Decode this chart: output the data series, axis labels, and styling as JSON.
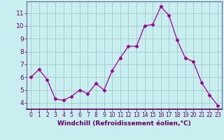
{
  "x": [
    0,
    1,
    2,
    3,
    4,
    5,
    6,
    7,
    8,
    9,
    10,
    11,
    12,
    13,
    14,
    15,
    16,
    17,
    18,
    19,
    20,
    21,
    22,
    23
  ],
  "y": [
    6.0,
    6.6,
    5.8,
    4.3,
    4.2,
    4.5,
    5.0,
    4.7,
    5.5,
    5.0,
    6.5,
    7.5,
    8.4,
    8.4,
    10.0,
    10.1,
    11.5,
    10.8,
    8.9,
    7.5,
    7.2,
    5.6,
    4.6,
    3.8
  ],
  "line_color": "#990099",
  "marker": "D",
  "markersize": 2.5,
  "bg_color": "#c8eef0",
  "grid_color": "#aacccc",
  "ylabel_ticks": [
    4,
    5,
    6,
    7,
    8,
    9,
    10,
    11
  ],
  "xlim": [
    -0.5,
    23.5
  ],
  "ylim": [
    3.5,
    11.9
  ],
  "xticks": [
    0,
    1,
    2,
    3,
    4,
    5,
    6,
    7,
    8,
    9,
    10,
    11,
    12,
    13,
    14,
    15,
    16,
    17,
    18,
    19,
    20,
    21,
    22,
    23
  ],
  "tick_color": "#660066",
  "label_color": "#660066",
  "spine_color": "#666699",
  "font_size_xtick": 5.5,
  "font_size_ytick": 6.5,
  "font_size_label": 6.5,
  "xlabel": "Windchill (Refroidissement éolien,°C)"
}
